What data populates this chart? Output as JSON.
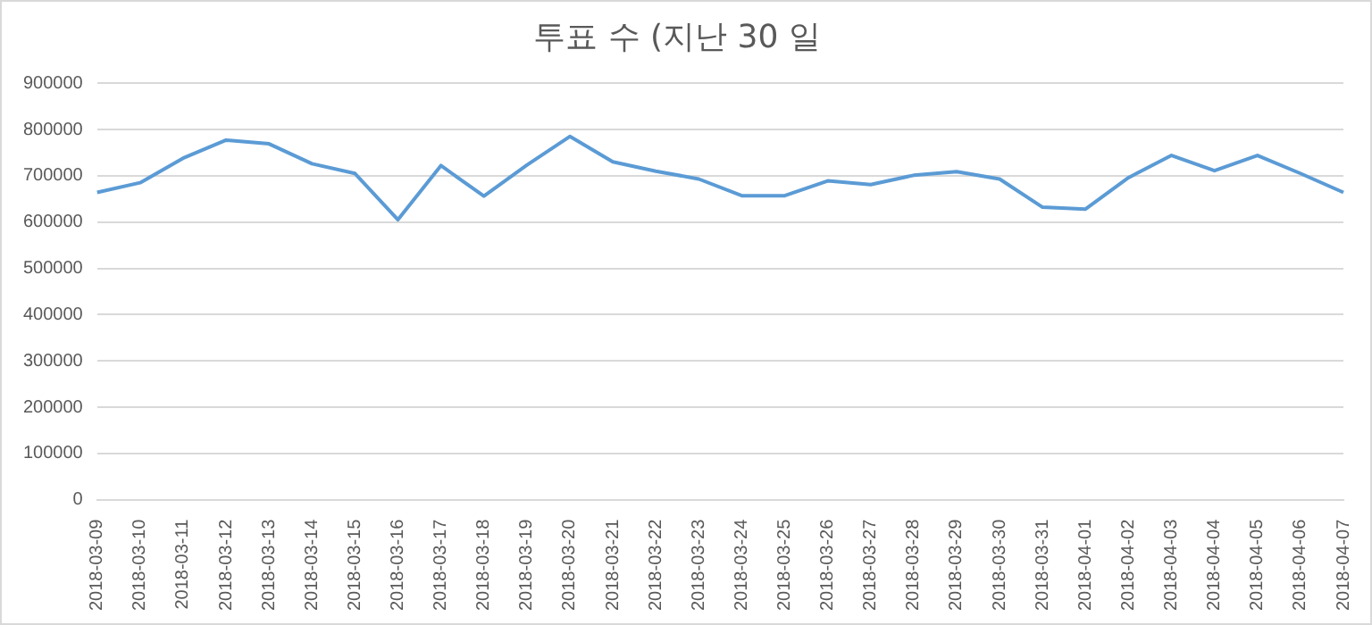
{
  "chart_data": {
    "type": "line",
    "title": "투표 수 (지난 30 일",
    "categories": [
      "2018-03-09",
      "2018-03-10",
      "2018-03-11",
      "2018-03-12",
      "2018-03-13",
      "2018-03-14",
      "2018-03-15",
      "2018-03-16",
      "2018-03-17",
      "2018-03-18",
      "2018-03-19",
      "2018-03-20",
      "2018-03-21",
      "2018-03-22",
      "2018-03-23",
      "2018-03-24",
      "2018-03-25",
      "2018-03-26",
      "2018-03-27",
      "2018-03-28",
      "2018-03-29",
      "2018-03-30",
      "2018-03-31",
      "2018-04-01",
      "2018-04-02",
      "2018-04-03",
      "2018-04-04",
      "2018-04-05",
      "2018-04-06",
      "2018-04-07"
    ],
    "series": [
      {
        "color": "#5b9bd5",
        "values": [
          664000,
          685000,
          738000,
          777000,
          769000,
          726000,
          705000,
          605000,
          722000,
          656000,
          723000,
          785000,
          730000,
          710000,
          693000,
          657000,
          657000,
          689000,
          681000,
          701000,
          709000,
          693000,
          632000,
          628000,
          696000,
          744000,
          711000,
          744000,
          705000,
          664000
        ]
      }
    ],
    "ylim": [
      0,
      900000
    ],
    "yticks": [
      0,
      100000,
      200000,
      300000,
      400000,
      500000,
      600000,
      700000,
      800000,
      900000
    ],
    "grid": "y",
    "legend": false,
    "marker": "none",
    "line_style": "solid"
  }
}
